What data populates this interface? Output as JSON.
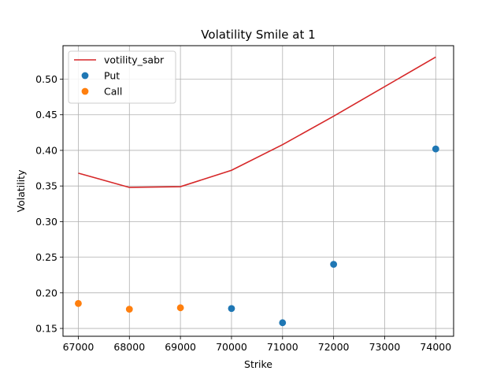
{
  "chart_data": {
    "type": "line",
    "title": "Volatility Smile at 1",
    "xlabel": "Strike",
    "ylabel": "Volatility",
    "xlim": [
      66700,
      74350
    ],
    "ylim": [
      0.139,
      0.547
    ],
    "xticks": [
      67000,
      68000,
      69000,
      70000,
      71000,
      72000,
      73000,
      74000
    ],
    "yticks": [
      0.15,
      0.2,
      0.25,
      0.3,
      0.35,
      0.4,
      0.45,
      0.5
    ],
    "grid": true,
    "legend_position": "top-left",
    "series": [
      {
        "name": "votility_sabr",
        "kind": "line",
        "color": "#d62728",
        "x": [
          67000,
          68000,
          69000,
          70000,
          71000,
          72000,
          74000
        ],
        "y": [
          0.368,
          0.348,
          0.349,
          0.372,
          0.408,
          0.448,
          0.531
        ]
      },
      {
        "name": "Put",
        "kind": "scatter",
        "color": "#1f77b4",
        "x": [
          70000,
          71000,
          72000,
          74000
        ],
        "y": [
          0.178,
          0.158,
          0.24,
          0.402
        ]
      },
      {
        "name": "Call",
        "kind": "scatter",
        "color": "#ff7f0e",
        "x": [
          67000,
          68000,
          69000
        ],
        "y": [
          0.185,
          0.177,
          0.179
        ]
      }
    ]
  }
}
